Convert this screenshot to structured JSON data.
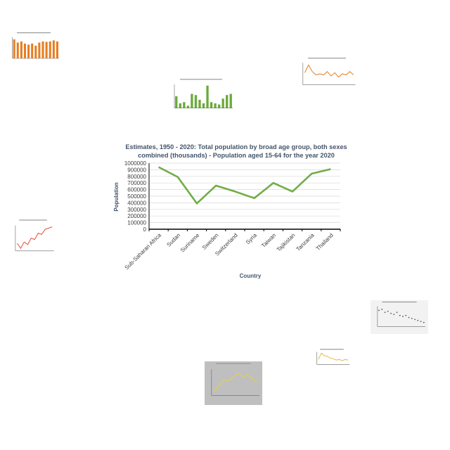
{
  "chart_data": [
    {
      "type": "line",
      "title": "Estimates, 1950 - 2020: Total population by broad age group, both sexes combined (thousands) - Population aged 15-64 for the year 2020",
      "title_lines": [
        "Estimates, 1950  - 2020: Total population  by broad age group,  both sexes",
        "combined  (thousands) - Population  aged 15-64  for the year 2020"
      ],
      "xlabel": "Country",
      "ylabel": "Population",
      "categories": [
        "Sub-Saharan Africa",
        "Sudan",
        "Suriname",
        "Sweden",
        "Switzerland",
        "Syria",
        "Taiwan",
        "Tajikistan",
        "Tanzania",
        "Thailand"
      ],
      "values": [
        940000,
        790000,
        390000,
        660000,
        570000,
        470000,
        700000,
        570000,
        840000,
        910000
      ],
      "ylim": [
        0,
        1000000
      ],
      "yticks": [
        "0",
        "100000",
        "200000",
        "300000",
        "400000",
        "500000",
        "600000",
        "700000",
        "800000",
        "900000",
        "1000000"
      ],
      "grid": true,
      "color": "#70ad47"
    }
  ],
  "thumbnails": [
    {
      "kind": "bar",
      "color": "#e67e22",
      "values": [
        0.9,
        0.75,
        0.8,
        0.7,
        0.65,
        0.7,
        0.6,
        0.75,
        0.8,
        0.78,
        0.8,
        0.85,
        0.8
      ]
    },
    {
      "kind": "bar",
      "color": "#6aaa3a",
      "values": [
        0.5,
        0.2,
        0.25,
        0.1,
        0.6,
        0.55,
        0.35,
        0.2,
        0.95,
        0.25,
        0.2,
        0.15,
        0.4,
        0.55,
        0.6
      ]
    },
    {
      "kind": "line",
      "color": "#e67e22",
      "values": [
        0.55,
        0.9,
        0.6,
        0.45,
        0.5,
        0.45,
        0.6,
        0.4,
        0.55,
        0.35,
        0.5,
        0.45,
        0.6,
        0.45
      ]
    },
    {
      "kind": "line",
      "color": "#e74c3c",
      "values": [
        0.3,
        0.1,
        0.35,
        0.25,
        0.5,
        0.45,
        0.7,
        0.65,
        0.85,
        0.9,
        0.95
      ]
    },
    {
      "kind": "scatter",
      "color": "#555555",
      "values": [
        0.8,
        0.85,
        0.7,
        0.75,
        0.65,
        0.6,
        0.7,
        0.55,
        0.5,
        0.55,
        0.45,
        0.4,
        0.35,
        0.3,
        0.25,
        0.2
      ]
    },
    {
      "kind": "line",
      "color": "#e6b84a",
      "values": [
        0.4,
        0.9,
        0.7,
        0.65,
        0.5,
        0.45,
        0.35,
        0.4,
        0.3,
        0.4,
        0.35
      ]
    },
    {
      "kind": "line",
      "color": "#e6d04a",
      "values": [
        0.15,
        0.35,
        0.6,
        0.55,
        0.7,
        0.85,
        0.7,
        0.8,
        0.65,
        0.5
      ]
    }
  ]
}
